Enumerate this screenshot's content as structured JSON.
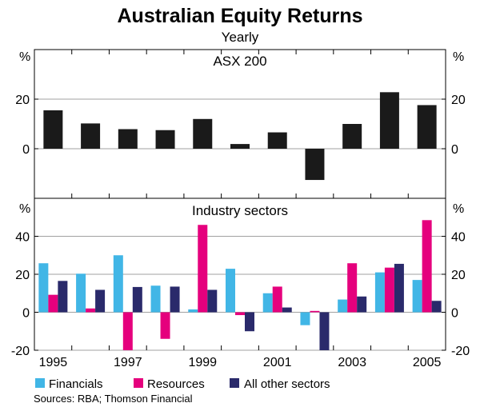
{
  "chart_data": {
    "type": "bar",
    "title": "Australian Equity Returns",
    "subtitle": "Yearly",
    "unit_label": "%",
    "source": "Sources: RBA; Thomson Financial",
    "years": [
      "1995",
      "1996",
      "1997",
      "1998",
      "1999",
      "2000",
      "2001",
      "2002",
      "2003",
      "2004",
      "2005"
    ],
    "x_tick_labels": [
      "1995",
      "",
      "1997",
      "",
      "1999",
      "",
      "2001",
      "",
      "2003",
      "",
      "2005"
    ],
    "panels": [
      {
        "title": "ASX 200",
        "ylim": [
          -20,
          40
        ],
        "yticks": [
          20,
          0
        ],
        "series": [
          {
            "name": "ASX 200",
            "color": "#1a1a1a",
            "values": [
              15.5,
              10.2,
              7.9,
              7.5,
              12.0,
              1.9,
              6.6,
              -12.6,
              10.0,
              22.8,
              17.6
            ]
          }
        ]
      },
      {
        "title": "Industry sectors",
        "ylim": [
          -20,
          60
        ],
        "yticks": [
          40,
          20,
          0,
          -20
        ],
        "series": [
          {
            "name": "Financials",
            "color": "#41b6e6",
            "values": [
              25.8,
              20.3,
              30.0,
              14.0,
              1.5,
              22.9,
              10.0,
              -6.8,
              6.7,
              21.0,
              17.0
            ]
          },
          {
            "name": "Resources",
            "color": "#e5007d",
            "values": [
              9.2,
              2.0,
              -21.0,
              -14.0,
              46.0,
              -1.5,
              13.5,
              0.7,
              25.8,
              23.5,
              48.5
            ]
          },
          {
            "name": "All other sectors",
            "color": "#2a2a6b",
            "values": [
              16.5,
              11.8,
              13.3,
              13.5,
              11.8,
              -10.0,
              2.5,
              -21.0,
              8.3,
              25.5,
              6.0
            ]
          }
        ]
      }
    ],
    "legend": [
      "Financials",
      "Resources",
      "All other sectors"
    ]
  }
}
